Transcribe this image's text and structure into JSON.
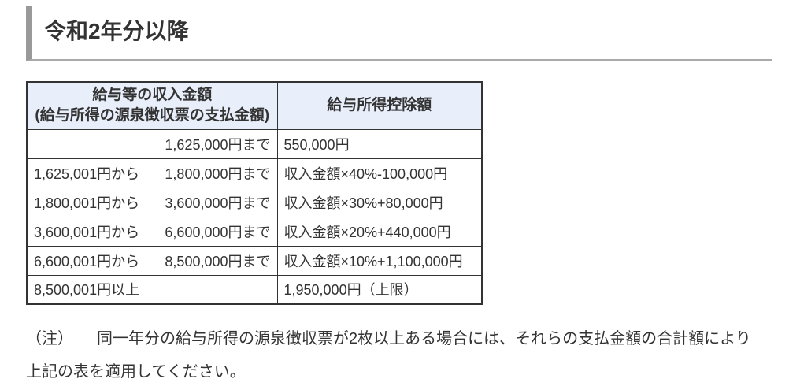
{
  "colors": {
    "text": "#333333",
    "border": "#333333",
    "header-bg": "#e8eefa",
    "heading-bar": "#999999",
    "heading-underline": "#a9a9a9"
  },
  "heading": {
    "title": "令和2年分以降"
  },
  "table": {
    "header": {
      "income_line1": "給与等の収入金額",
      "income_line2": "(給与所得の源泉徴収票の支払金額)",
      "deduction": "給与所得控除額"
    },
    "rows": [
      {
        "from": "",
        "to": "1,625,000円まで",
        "deduction": "550,000円"
      },
      {
        "from": "1,625,001円から",
        "to": "1,800,000円まで",
        "deduction": "収入金額×40%-100,000円"
      },
      {
        "from": "1,800,001円から",
        "to": "3,600,000円まで",
        "deduction": "収入金額×30%+80,000円"
      },
      {
        "from": "3,600,001円から",
        "to": "6,600,000円まで",
        "deduction": "収入金額×20%+440,000円"
      },
      {
        "from": "6,600,001円から",
        "to": "8,500,000円まで",
        "deduction": "収入金額×10%+1,100,000円"
      },
      {
        "from": "8,500,001円以上",
        "to": "",
        "deduction": "1,950,000円（上限）"
      }
    ]
  },
  "note": {
    "line1": "（注）　　同一年分の給与所得の源泉徴収票が2枚以上ある場合には、それらの支払金額の合計額により",
    "line2": "上記の表を適用してください。"
  }
}
